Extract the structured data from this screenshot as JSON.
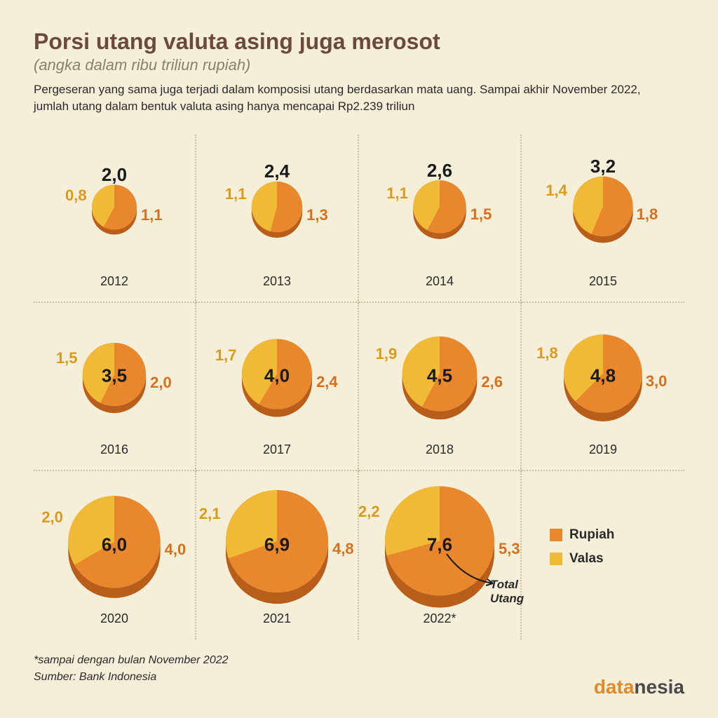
{
  "header": {
    "title": "Porsi utang valuta asing juga merosot",
    "subtitle": "(angka dalam ribu triliun rupiah)",
    "description": "Pergeseran yang sama juga terjadi dalam komposisi utang berdasarkan mata uang. Sampai akhir November 2022, jumlah utang dalam bentuk valuta asing hanya mencapai Rp2.239 triliun"
  },
  "legend": {
    "items": [
      {
        "label": "Rupiah",
        "color": "#e8872b"
      },
      {
        "label": "Valas",
        "color": "#f0b936"
      }
    ]
  },
  "colors": {
    "rupiah_fill": "#e8872b",
    "rupiah_side": "#b85e1a",
    "valas_fill": "#f0b936",
    "valas_text": "#d99a1e",
    "rupiah_text": "#d6701e",
    "background": "#f5efd9",
    "divider": "#c9bfa0",
    "title": "#6b4a3a"
  },
  "annotation": {
    "label": "Total Utang"
  },
  "chart": {
    "type": "pie-grid-3d",
    "min_radius": 32,
    "max_radius": 78,
    "depth_ratio": 0.22,
    "rows": 3,
    "cols": 4,
    "items": [
      {
        "year": "2012",
        "total": "2,0",
        "valas": "0,8",
        "rupiah": "1,1",
        "valas_n": 0.8,
        "rupiah_n": 1.1,
        "total_pos": "above"
      },
      {
        "year": "2013",
        "total": "2,4",
        "valas": "1,1",
        "rupiah": "1,3",
        "valas_n": 1.1,
        "rupiah_n": 1.3,
        "total_pos": "above"
      },
      {
        "year": "2014",
        "total": "2,6",
        "valas": "1,1",
        "rupiah": "1,5",
        "valas_n": 1.1,
        "rupiah_n": 1.5,
        "total_pos": "above"
      },
      {
        "year": "2015",
        "total": "3,2",
        "valas": "1,4",
        "rupiah": "1,8",
        "valas_n": 1.4,
        "rupiah_n": 1.8,
        "total_pos": "above"
      },
      {
        "year": "2016",
        "total": "3,5",
        "valas": "1,5",
        "rupiah": "2,0",
        "valas_n": 1.5,
        "rupiah_n": 2.0,
        "total_pos": "center"
      },
      {
        "year": "2017",
        "total": "4,0",
        "valas": "1,7",
        "rupiah": "2,4",
        "valas_n": 1.7,
        "rupiah_n": 2.4,
        "total_pos": "center"
      },
      {
        "year": "2018",
        "total": "4,5",
        "valas": "1,9",
        "rupiah": "2,6",
        "valas_n": 1.9,
        "rupiah_n": 2.6,
        "total_pos": "center"
      },
      {
        "year": "2019",
        "total": "4,8",
        "valas": "1,8",
        "rupiah": "3,0",
        "valas_n": 1.8,
        "rupiah_n": 3.0,
        "total_pos": "center"
      },
      {
        "year": "2020",
        "total": "6,0",
        "valas": "2,0",
        "rupiah": "4,0",
        "valas_n": 2.0,
        "rupiah_n": 4.0,
        "total_pos": "center"
      },
      {
        "year": "2021",
        "total": "6,9",
        "valas": "2,1",
        "rupiah": "4,8",
        "valas_n": 2.1,
        "rupiah_n": 4.8,
        "total_pos": "center"
      },
      {
        "year": "2022*",
        "total": "7,6",
        "valas": "2,2",
        "rupiah": "5,3",
        "valas_n": 2.2,
        "rupiah_n": 5.3,
        "total_pos": "center",
        "annotate": true
      }
    ]
  },
  "footer": {
    "note": "*sampai dengan bulan November 2022",
    "source": "Sumber: Bank Indonesia",
    "logo_a": "data",
    "logo_b": "nesia"
  }
}
